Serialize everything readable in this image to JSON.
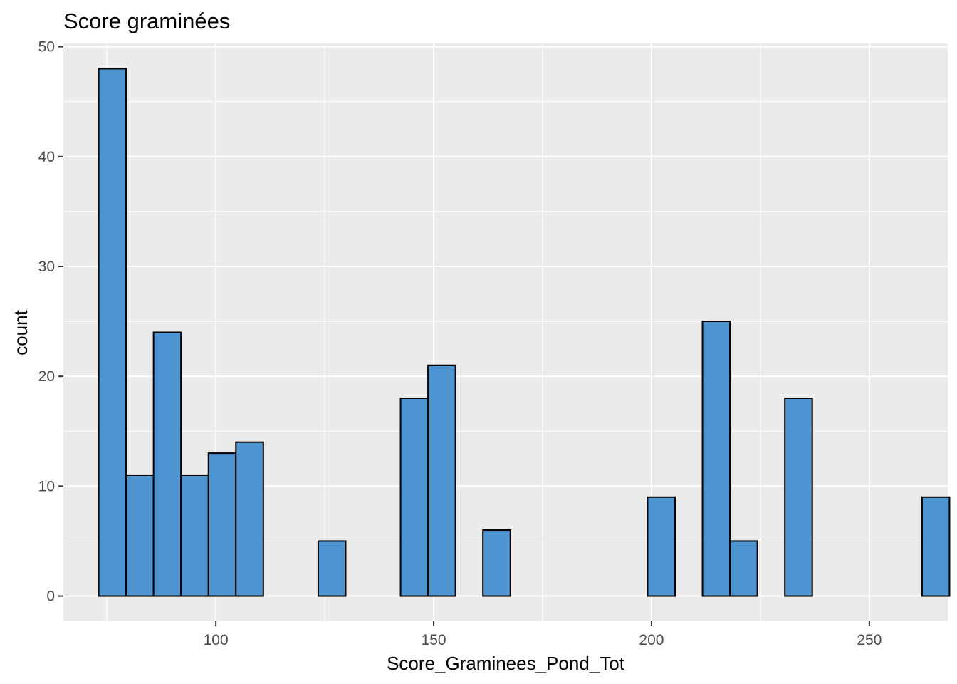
{
  "chart_data": {
    "type": "bar",
    "title": "Score graminées",
    "xlabel": "Score_Graminees_Pond_Tot",
    "ylabel": "count",
    "fill_color": "#4e94d0",
    "outline_color": "#000000",
    "panel_color": "#ebebeb",
    "grid": true,
    "xlim": [
      65,
      268
    ],
    "ylim": [
      -2.3,
      50.3
    ],
    "x_ticks": [
      100,
      150,
      200,
      250
    ],
    "y_ticks": [
      0,
      10,
      20,
      30,
      40,
      50
    ],
    "bin_width": 6.3,
    "bin_start": 73.1,
    "counts": [
      48,
      11,
      24,
      11,
      13,
      14,
      0,
      0,
      5,
      0,
      0,
      18,
      21,
      0,
      6,
      0,
      0,
      0,
      0,
      0,
      9,
      0,
      25,
      5,
      0,
      18,
      0,
      0,
      0,
      0,
      9
    ]
  }
}
